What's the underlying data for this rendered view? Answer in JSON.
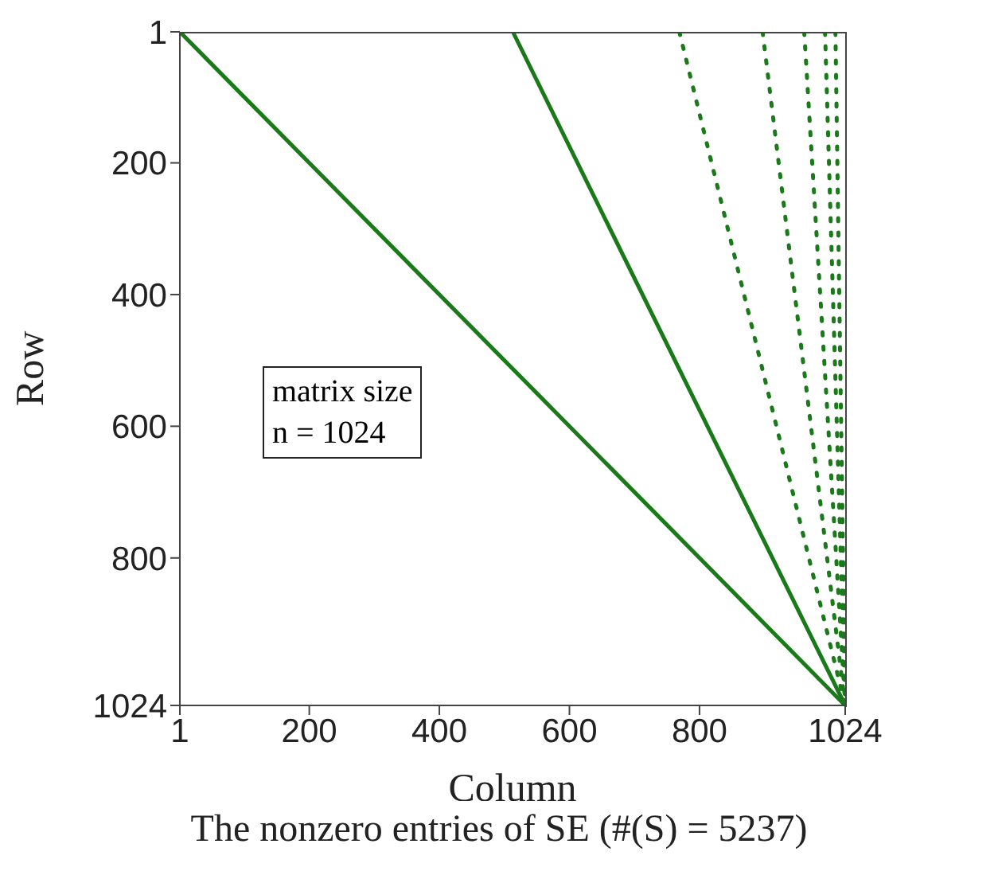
{
  "chart_data": {
    "type": "line",
    "title": "The nonzero entries of SE (#(S) = 5237)",
    "xlabel": "Column",
    "ylabel": "Row",
    "xlim": [
      1,
      1024
    ],
    "ylim": [
      1024,
      1
    ],
    "xticks": [
      1,
      200,
      400,
      600,
      800,
      1024
    ],
    "yticks": [
      1,
      200,
      400,
      600,
      800,
      1024
    ],
    "marker": "none",
    "annotations": [
      "matrix size\nn = 1024"
    ],
    "series": [
      {
        "color": "#1a7a1a",
        "x": [
          1,
          1024
        ],
        "values": [
          1,
          1024
        ],
        "line_style": "solid"
      },
      {
        "color": "#1a7a1a",
        "x": [
          513,
          1024
        ],
        "values": [
          1,
          1024
        ],
        "line_style": "solid"
      },
      {
        "color": "#1a7a1a",
        "x": [
          769,
          1024
        ],
        "values": [
          1,
          1024
        ],
        "line_style": "dotted"
      },
      {
        "color": "#1a7a1a",
        "x": [
          897,
          1024
        ],
        "values": [
          1,
          1024
        ],
        "line_style": "dotted"
      },
      {
        "color": "#1a7a1a",
        "x": [
          961,
          1024
        ],
        "values": [
          1,
          1024
        ],
        "line_style": "dotted"
      },
      {
        "color": "#1a7a1a",
        "x": [
          993,
          1024
        ],
        "values": [
          1,
          1024
        ],
        "line_style": "dotted"
      },
      {
        "color": "#1a7a1a",
        "x": [
          1009,
          1024
        ],
        "values": [
          1,
          1024
        ],
        "line_style": "dotted"
      }
    ]
  }
}
